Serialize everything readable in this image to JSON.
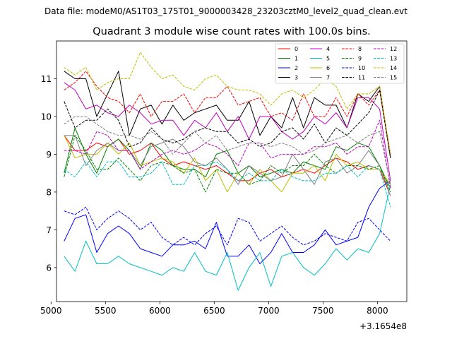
{
  "chart_data": {
    "type": "line",
    "suptitle": "Data file: modeM0/AS1T03_175T01_9000003428_23203cztM0_level2_quad_clean.evt",
    "title": "Quadrant 3 module wise count rates with 100.0s bins.",
    "xlabel": "",
    "ylabel": "",
    "x_offset_label": "+3.1654e8",
    "xlim": [
      5050,
      8270
    ],
    "ylim": [
      5.1,
      12.0
    ],
    "xticks": [
      5000,
      5500,
      6000,
      6500,
      7000,
      7500,
      8000
    ],
    "yticks": [
      6,
      7,
      8,
      9,
      10,
      11
    ],
    "x": [
      5120,
      5220,
      5320,
      5420,
      5520,
      5620,
      5720,
      5820,
      5920,
      6020,
      6120,
      6220,
      6320,
      6420,
      6520,
      6620,
      6720,
      6820,
      6920,
      7020,
      7120,
      7220,
      7320,
      7420,
      7520,
      7620,
      7720,
      7820,
      7920,
      8020,
      8120
    ],
    "series": [
      {
        "name": "0",
        "color": "#ff0000",
        "dash": "solid",
        "values": [
          9.5,
          9.1,
          9.1,
          9.3,
          9.2,
          9.4,
          9.0,
          9.1,
          9.3,
          8.9,
          8.7,
          8.8,
          8.7,
          8.6,
          8.7,
          8.5,
          8.3,
          8.3,
          8.5,
          8.6,
          8.4,
          8.5,
          8.6,
          8.5,
          8.7,
          8.9,
          8.8,
          8.6,
          8.7,
          8.6,
          7.9
        ]
      },
      {
        "name": "1",
        "color": "#008000",
        "dash": "solid",
        "values": [
          8.5,
          9.7,
          9.0,
          8.5,
          9.2,
          9.4,
          9.1,
          8.6,
          9.3,
          9.1,
          8.7,
          8.6,
          8.6,
          8.4,
          9.0,
          9.1,
          8.5,
          8.7,
          8.4,
          8.5,
          8.6,
          8.5,
          8.8,
          8.7,
          8.6,
          9.2,
          9.1,
          9.3,
          9.2,
          8.7,
          8.1
        ]
      },
      {
        "name": "2",
        "color": "#0000ff",
        "dash": "solid",
        "values": [
          6.7,
          7.3,
          7.4,
          6.4,
          6.9,
          7.1,
          6.9,
          6.5,
          6.4,
          6.3,
          6.6,
          6.6,
          6.7,
          6.5,
          7.2,
          6.3,
          6.3,
          6.6,
          6.1,
          6.4,
          6.9,
          6.4,
          6.4,
          6.6,
          7.0,
          6.6,
          6.7,
          6.8,
          7.6,
          8.1,
          8.3
        ]
      },
      {
        "name": "3",
        "color": "#000000",
        "dash": "solid",
        "values": [
          11.2,
          11.0,
          11.0,
          10.0,
          10.6,
          11.2,
          9.5,
          10.2,
          10.3,
          9.8,
          10.3,
          9.9,
          10.1,
          10.2,
          10.3,
          9.9,
          9.9,
          10.4,
          9.5,
          10.0,
          9.7,
          10.5,
          9.7,
          10.5,
          10.3,
          10.3,
          9.7,
          10.6,
          10.4,
          10.8,
          8.9
        ]
      },
      {
        "name": "4",
        "color": "#c000c0",
        "dash": "solid",
        "values": [
          10.9,
          10.7,
          10.2,
          10.3,
          10.1,
          10.0,
          10.3,
          10.1,
          9.8,
          9.9,
          9.9,
          9.5,
          9.9,
          9.7,
          10.1,
          9.6,
          10.0,
          9.4,
          10.0,
          10.0,
          9.6,
          9.4,
          9.6,
          10.0,
          9.8,
          10.1,
          9.7,
          10.5,
          10.5,
          10.2,
          8.3
        ]
      },
      {
        "name": "5",
        "color": "#00bfbf",
        "dash": "solid",
        "values": [
          6.3,
          5.9,
          6.7,
          6.1,
          6.1,
          6.3,
          6.1,
          6.0,
          5.9,
          5.8,
          6.0,
          5.9,
          6.4,
          5.9,
          5.8,
          6.4,
          5.4,
          6.0,
          6.4,
          5.5,
          6.3,
          6.4,
          6.0,
          5.8,
          6.1,
          6.5,
          6.2,
          6.5,
          6.4,
          6.9,
          8.2
        ]
      },
      {
        "name": "6",
        "color": "#bfbf00",
        "dash": "solid",
        "values": [
          9.5,
          8.9,
          9.0,
          9.0,
          9.3,
          9.0,
          9.3,
          8.7,
          8.8,
          8.9,
          8.8,
          8.5,
          8.9,
          8.3,
          8.6,
          8.0,
          8.5,
          8.2,
          8.6,
          8.3,
          8.0,
          8.5,
          8.5,
          8.7,
          8.3,
          9.0,
          8.7,
          8.8,
          8.6,
          8.6,
          8.2
        ]
      },
      {
        "name": "7",
        "color": "#808080",
        "dash": "solid",
        "values": [
          9.5,
          9.5,
          8.7,
          9.1,
          9.3,
          9.1,
          9.1,
          8.7,
          9.2,
          9.3,
          9.4,
          9.2,
          8.8,
          8.7,
          8.9,
          8.6,
          8.2,
          8.7,
          8.5,
          8.3,
          8.4,
          9.0,
          8.6,
          8.2,
          8.8,
          8.9,
          8.5,
          8.7,
          9.1,
          8.7,
          7.9
        ]
      },
      {
        "name": "8",
        "color": "#ff0000",
        "dash": "dashed",
        "values": [
          10.7,
          10.9,
          11.2,
          10.8,
          10.5,
          10.4,
          10.1,
          10.6,
          10.0,
          10.4,
          10.4,
          10.6,
          10.1,
          10.5,
          10.5,
          10.8,
          10.3,
          10.4,
          10.5,
          10.0,
          10.1,
          9.9,
          10.6,
          10.0,
          10.0,
          10.5,
          10.0,
          10.6,
          10.3,
          10.7,
          9.0
        ]
      },
      {
        "name": "9",
        "color": "#008000",
        "dash": "dashed",
        "values": [
          8.4,
          9.5,
          9.1,
          8.6,
          8.6,
          8.9,
          8.6,
          8.3,
          8.7,
          8.8,
          8.7,
          8.5,
          8.6,
          8.0,
          8.6,
          8.5,
          8.5,
          8.2,
          8.3,
          8.7,
          8.5,
          8.7,
          8.7,
          9.0,
          8.7,
          8.5,
          8.7,
          8.7,
          8.6,
          8.7,
          8.0
        ]
      },
      {
        "name": "10",
        "color": "#0000ff",
        "dash": "dashed",
        "values": [
          7.5,
          7.4,
          7.6,
          7.0,
          7.3,
          7.5,
          7.3,
          7.0,
          7.2,
          6.8,
          6.6,
          6.8,
          6.6,
          6.9,
          7.1,
          6.6,
          7.3,
          7.2,
          6.7,
          6.9,
          7.1,
          6.8,
          6.6,
          6.7,
          6.9,
          6.8,
          6.7,
          7.2,
          7.3,
          7.0,
          6.7
        ]
      },
      {
        "name": "11",
        "color": "#000000",
        "dash": "dashed",
        "values": [
          10.4,
          9.7,
          9.9,
          9.9,
          10.2,
          9.9,
          9.2,
          9.3,
          9.7,
          9.4,
          9.3,
          9.4,
          9.6,
          9.7,
          9.6,
          9.6,
          9.3,
          9.4,
          9.2,
          9.3,
          9.6,
          9.7,
          9.4,
          9.8,
          9.3,
          9.7,
          9.5,
          9.8,
          10.1,
          10.7,
          8.9
        ]
      },
      {
        "name": "12",
        "color": "#c000c0",
        "dash": "dashed",
        "values": [
          9.1,
          9.1,
          9.0,
          9.6,
          9.5,
          9.1,
          9.1,
          8.6,
          8.8,
          9.0,
          9.1,
          9.0,
          9.1,
          9.3,
          9.2,
          9.0,
          8.7,
          9.3,
          9.3,
          8.9,
          9.0,
          9.0,
          9.0,
          9.2,
          9.2,
          9.3,
          9.0,
          9.2,
          9.2,
          9.9,
          8.1
        ]
      },
      {
        "name": "13",
        "color": "#00bfbf",
        "dash": "dashed",
        "values": [
          8.6,
          8.4,
          8.8,
          8.4,
          8.8,
          8.8,
          8.4,
          8.4,
          8.5,
          8.8,
          8.2,
          8.2,
          8.7,
          8.7,
          8.8,
          8.6,
          8.3,
          8.5,
          8.3,
          8.3,
          8.6,
          8.4,
          8.3,
          8.3,
          8.5,
          8.5,
          8.7,
          8.4,
          8.7,
          8.6,
          7.6
        ]
      },
      {
        "name": "14",
        "color": "#bfbf00",
        "dash": "dashed",
        "values": [
          11.3,
          11.1,
          11.3,
          10.7,
          10.9,
          11.0,
          11.0,
          11.7,
          11.3,
          11.0,
          11.1,
          10.8,
          10.7,
          11.0,
          11.1,
          10.8,
          10.7,
          10.7,
          10.6,
          10.3,
          10.6,
          10.7,
          10.5,
          10.7,
          11.0,
          10.8,
          10.2,
          10.6,
          10.6,
          10.8,
          9.0
        ]
      },
      {
        "name": "15",
        "color": "#808080",
        "dash": "dashed",
        "values": [
          9.8,
          10.0,
          10.0,
          9.8,
          9.6,
          9.5,
          9.5,
          9.4,
          9.6,
          9.4,
          9.0,
          9.3,
          9.6,
          9.3,
          9.5,
          9.1,
          9.2,
          9.3,
          9.3,
          9.2,
          9.3,
          9.2,
          9.0,
          9.1,
          9.3,
          9.4,
          9.5,
          9.3,
          9.5,
          9.6,
          8.2
        ]
      }
    ]
  }
}
